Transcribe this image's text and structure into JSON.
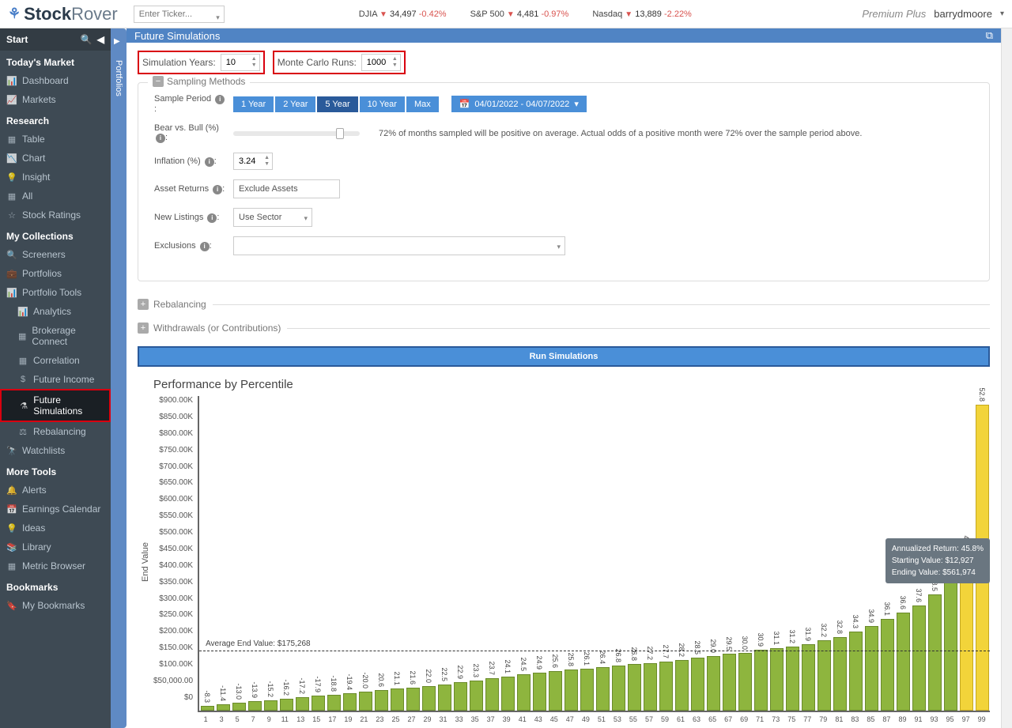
{
  "topbar": {
    "logo_a": "Stock",
    "logo_b": "Rover",
    "ticker_placeholder": "Enter Ticker...",
    "indices": [
      {
        "name": "DJIA",
        "value": "34,497",
        "change": "-0.42%"
      },
      {
        "name": "S&P 500",
        "value": "4,481",
        "change": "-0.97%"
      },
      {
        "name": "Nasdaq",
        "value": "13,889",
        "change": "-2.22%"
      }
    ],
    "plan": "Premium Plus",
    "user": "barrydmoore"
  },
  "sidebar": {
    "start": "Start",
    "sections": [
      {
        "title": "Today's Market",
        "items": [
          {
            "icon": "📊",
            "label": "Dashboard"
          },
          {
            "icon": "📈",
            "label": "Markets"
          }
        ]
      },
      {
        "title": "Research",
        "items": [
          {
            "icon": "▦",
            "label": "Table"
          },
          {
            "icon": "📉",
            "label": "Chart"
          },
          {
            "icon": "💡",
            "label": "Insight"
          },
          {
            "icon": "▦",
            "label": "All"
          },
          {
            "icon": "☆",
            "label": "Stock Ratings"
          }
        ]
      },
      {
        "title": "My Collections",
        "items": [
          {
            "icon": "🔍",
            "label": "Screeners"
          },
          {
            "icon": "💼",
            "label": "Portfolios"
          },
          {
            "icon": "📊",
            "label": "Portfolio Tools",
            "sub": [
              {
                "icon": "📊",
                "label": "Analytics"
              },
              {
                "icon": "▦",
                "label": "Brokerage Connect"
              },
              {
                "icon": "▦",
                "label": "Correlation"
              },
              {
                "icon": "$",
                "label": "Future Income"
              },
              {
                "icon": "⚗",
                "label": "Future Simulations",
                "active": true
              },
              {
                "icon": "⚖",
                "label": "Rebalancing"
              }
            ]
          },
          {
            "icon": "🔭",
            "label": "Watchlists"
          }
        ]
      },
      {
        "title": "More Tools",
        "items": [
          {
            "icon": "🔔",
            "label": "Alerts"
          },
          {
            "icon": "📅",
            "label": "Earnings Calendar"
          },
          {
            "icon": "💡",
            "label": "Ideas"
          },
          {
            "icon": "📚",
            "label": "Library"
          },
          {
            "icon": "▦",
            "label": "Metric Browser"
          }
        ]
      },
      {
        "title": "Bookmarks",
        "items": [
          {
            "icon": "🔖",
            "label": "My Bookmarks"
          }
        ]
      }
    ]
  },
  "portfolios_tab": "Portfolios",
  "main": {
    "title": "Future Simulations",
    "sim_years_label": "Simulation Years:",
    "sim_years": "10",
    "mc_runs_label": "Monte Carlo Runs:",
    "mc_runs": "1000",
    "sampling_legend": "Sampling Methods",
    "sample_period_label": "Sample Period",
    "period_buttons": [
      "1 Year",
      "2 Year",
      "5 Year",
      "10 Year",
      "Max"
    ],
    "period_active": "5 Year",
    "date_range": "04/01/2022 - 04/07/2022",
    "bear_bull_label": "Bear vs. Bull (%)",
    "bear_bull_desc": "72% of months sampled will be positive on average. Actual odds of a positive month were 72% over the sample period above.",
    "inflation_label": "Inflation (%)",
    "inflation": "3.24",
    "asset_returns_label": "Asset Returns",
    "asset_returns": "Exclude Assets",
    "new_listings_label": "New Listings",
    "new_listings": "Use Sector",
    "exclusions_label": "Exclusions",
    "rebalancing_legend": "Rebalancing",
    "withdrawals_legend": "Withdrawals (or Contributions)",
    "run_button": "Run Simulations"
  },
  "chart": {
    "title": "Performance by Percentile",
    "y_label": "End Value",
    "y_max": 900000,
    "y_ticks": [
      "$900.00K",
      "$850.00K",
      "$800.00K",
      "$750.00K",
      "$700.00K",
      "$650.00K",
      "$600.00K",
      "$550.00K",
      "$500.00K",
      "$450.00K",
      "$400.00K",
      "$350.00K",
      "$300.00K",
      "$250.00K",
      "$200.00K",
      "$150.00K",
      "$100.00K",
      "$50,000.00",
      "$0"
    ],
    "avg_label": "Average End Value: $175,268",
    "avg_value": 175268,
    "bar_colors": {
      "normal": "#8eb53e",
      "highlight": "#f2d43a"
    },
    "bars": [
      {
        "x": 1,
        "label": "-8.3",
        "v": 14000
      },
      {
        "x": 3,
        "label": "-11.4",
        "v": 18000
      },
      {
        "x": 5,
        "label": "-13.0",
        "v": 22000
      },
      {
        "x": 7,
        "label": "-13.9",
        "v": 26000
      },
      {
        "x": 9,
        "label": "-15.2",
        "v": 30000
      },
      {
        "x": 11,
        "label": "-16.2",
        "v": 34000
      },
      {
        "x": 13,
        "label": "-17.2",
        "v": 38000
      },
      {
        "x": 15,
        "label": "-17.9",
        "v": 42000
      },
      {
        "x": 17,
        "label": "-18.8",
        "v": 46000
      },
      {
        "x": 19,
        "label": "-19.4",
        "v": 50000
      },
      {
        "x": 21,
        "label": "-20.0",
        "v": 54000
      },
      {
        "x": 23,
        "label": "20.6",
        "v": 58000
      },
      {
        "x": 25,
        "label": "21.1",
        "v": 62000
      },
      {
        "x": 27,
        "label": "21.6",
        "v": 66000
      },
      {
        "x": 29,
        "label": "22.0",
        "v": 70000
      },
      {
        "x": 31,
        "label": "22.5",
        "v": 75000
      },
      {
        "x": 33,
        "label": "22.9",
        "v": 80000
      },
      {
        "x": 35,
        "label": "23.3",
        "v": 85000
      },
      {
        "x": 37,
        "label": "23.7",
        "v": 92000
      },
      {
        "x": 39,
        "label": "24.1",
        "v": 97000
      },
      {
        "x": 41,
        "label": "24.5",
        "v": 104000
      },
      {
        "x": 43,
        "label": "24.9",
        "v": 108000
      },
      {
        "x": 45,
        "label": "25.6",
        "v": 113000
      },
      {
        "x": 47,
        "label": "25.8",
        "v": 116000
      },
      {
        "x": 49,
        "label": "26.1",
        "v": 120000
      },
      {
        "x": 51,
        "label": "26.4",
        "v": 124000
      },
      {
        "x": 53,
        "label": "26.8",
        "v": 128000
      },
      {
        "x": 55,
        "label": "26.8",
        "v": 132000
      },
      {
        "x": 57,
        "label": "27.2",
        "v": 135000
      },
      {
        "x": 59,
        "label": "27.7",
        "v": 140000
      },
      {
        "x": 61,
        "label": "28.2",
        "v": 145000
      },
      {
        "x": 63,
        "label": "28.5",
        "v": 150000
      },
      {
        "x": 65,
        "label": "29.0",
        "v": 156000
      },
      {
        "x": 67,
        "label": "29.5",
        "v": 161000
      },
      {
        "x": 69,
        "label": "30.0",
        "v": 165000
      },
      {
        "x": 71,
        "label": "30.9",
        "v": 173000
      },
      {
        "x": 73,
        "label": "31.1",
        "v": 178000
      },
      {
        "x": 75,
        "label": "31.2",
        "v": 182000
      },
      {
        "x": 77,
        "label": "31.9",
        "v": 190000
      },
      {
        "x": 79,
        "label": "32.2",
        "v": 200000
      },
      {
        "x": 81,
        "label": "32.8",
        "v": 210000
      },
      {
        "x": 83,
        "label": "34.3",
        "v": 225000
      },
      {
        "x": 85,
        "label": "34.9",
        "v": 240000
      },
      {
        "x": 87,
        "label": "36.1",
        "v": 260000
      },
      {
        "x": 89,
        "label": "36.6",
        "v": 280000
      },
      {
        "x": 91,
        "label": "37.6",
        "v": 300000
      },
      {
        "x": 93,
        "label": "38.5",
        "v": 330000
      },
      {
        "x": 95,
        "label": "40.0",
        "v": 380000
      },
      {
        "x": 97,
        "label": "41.8",
        "v": 450000,
        "yellow": true
      },
      {
        "x": 99,
        "label": "52.8",
        "v": 870000,
        "yellow": true
      }
    ],
    "tooltip": {
      "l1": "Annualized Return: 45.8%",
      "l2": "Starting Value: $12,927",
      "l3": "Ending Value:   $561,974"
    }
  }
}
